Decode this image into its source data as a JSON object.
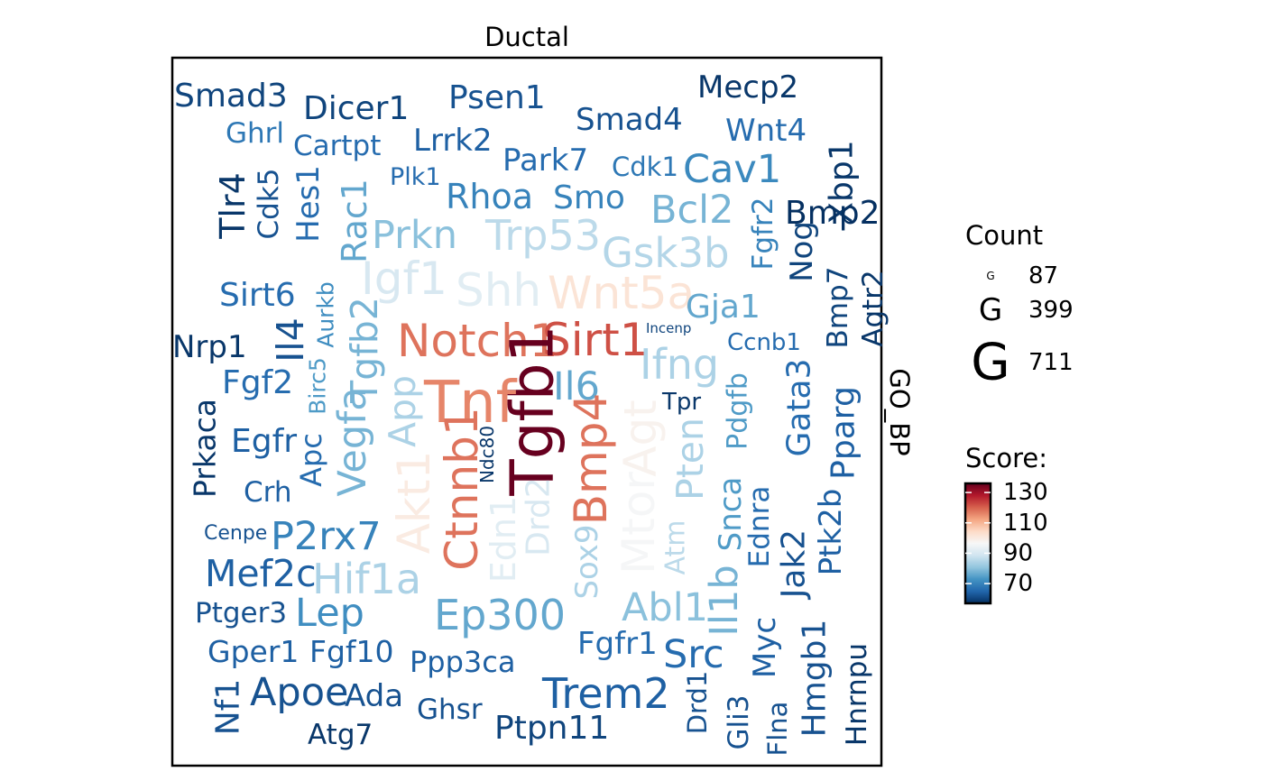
{
  "chart_data": {
    "type": "wordcloud",
    "title": "Ductal",
    "facet_strip": "GO_BP",
    "legend_count": {
      "title": "Count",
      "symbol": "G",
      "entries": [
        87,
        399,
        711
      ]
    },
    "legend_score": {
      "title": "Score:",
      "ticks": [
        130,
        110,
        90,
        70
      ],
      "range": [
        57,
        136
      ],
      "colors": [
        "#053061",
        "#2166ac",
        "#4393c3",
        "#92c5de",
        "#d1e5f0",
        "#f7f7f7",
        "#fddbc7",
        "#f4a582",
        "#d6604d",
        "#b2182b",
        "#67001f"
      ]
    },
    "words": [
      {
        "w": "Smad3",
        "s": 60
      },
      {
        "w": "Dicer1",
        "s": 60
      },
      {
        "w": "Psen1",
        "s": 62
      },
      {
        "w": "Mecp2",
        "s": 58
      },
      {
        "w": "Smad4",
        "s": 62
      },
      {
        "w": "Ghrl",
        "s": 68
      },
      {
        "w": "Cartpt",
        "s": 66
      },
      {
        "w": "Lrrk2",
        "s": 64
      },
      {
        "w": "Wnt4",
        "s": 66
      },
      {
        "w": "Park7",
        "s": 66
      },
      {
        "w": "Cdk1",
        "s": 68
      },
      {
        "w": "Cav1",
        "s": 71
      },
      {
        "w": "Xbp1",
        "s": 58
      },
      {
        "w": "Plk1",
        "s": 66
      },
      {
        "w": "Rhoa",
        "s": 70
      },
      {
        "w": "Smo",
        "s": 70
      },
      {
        "w": "Tlr4",
        "s": 58
      },
      {
        "w": "Cdk5",
        "s": 62
      },
      {
        "w": "Hes1",
        "s": 66
      },
      {
        "w": "Rac1",
        "s": 76
      },
      {
        "w": "Bcl2",
        "s": 78
      },
      {
        "w": "Fgfr2",
        "s": 70
      },
      {
        "w": "Bmp2",
        "s": 56
      },
      {
        "w": "Prkn",
        "s": 80
      },
      {
        "w": "Trp53",
        "s": 86
      },
      {
        "w": "Gsk3b",
        "s": 85
      },
      {
        "w": "Nog",
        "s": 60
      },
      {
        "w": "Igf1",
        "s": 90
      },
      {
        "w": "Shh",
        "s": 92
      },
      {
        "w": "Wnt5a",
        "s": 102
      },
      {
        "w": "Sirt6",
        "s": 66
      },
      {
        "w": "Gja1",
        "s": 76
      },
      {
        "w": "Bmp7",
        "s": 60
      },
      {
        "w": "Aurkb",
        "s": 72
      },
      {
        "w": "Tgfb2",
        "s": 78
      },
      {
        "w": "Agtr2",
        "s": 58
      },
      {
        "w": "Notch1",
        "s": 118
      },
      {
        "w": "Sirt1",
        "s": 122
      },
      {
        "w": "Incenp",
        "s": 60
      },
      {
        "w": "Il4",
        "s": 62
      },
      {
        "w": "Nrp1",
        "s": 58
      },
      {
        "w": "Birc5",
        "s": 74
      },
      {
        "w": "Tgfb1",
        "s": 136
      },
      {
        "w": "Ccnb1",
        "s": 66
      },
      {
        "w": "Ifng",
        "s": 84
      },
      {
        "w": "Fgf2",
        "s": 66
      },
      {
        "w": "Il6",
        "s": 76
      },
      {
        "w": "Gata3",
        "s": 66
      },
      {
        "w": "Tnf",
        "s": 116
      },
      {
        "w": "Pparg",
        "s": 64
      },
      {
        "w": "App",
        "s": 84
      },
      {
        "w": "Tpr",
        "s": 58
      },
      {
        "w": "Pdgfb",
        "s": 74
      },
      {
        "w": "Prkaca",
        "s": 58
      },
      {
        "w": "Vegfa",
        "s": 78
      },
      {
        "w": "Bmp4",
        "s": 118
      },
      {
        "w": "Agt",
        "s": 98
      },
      {
        "w": "Egfr",
        "s": 64
      },
      {
        "w": "Ndc80",
        "s": 58
      },
      {
        "w": "Pten",
        "s": 84
      },
      {
        "w": "Apc",
        "s": 66
      },
      {
        "w": "Mtor",
        "s": 96
      },
      {
        "w": "Ctnnb1",
        "s": 118
      },
      {
        "w": "Crh",
        "s": 64
      },
      {
        "w": "Akt1",
        "s": 100
      },
      {
        "w": "Snca",
        "s": 74
      },
      {
        "w": "Ednra",
        "s": 66
      },
      {
        "w": "Ptk2b",
        "s": 64
      },
      {
        "w": "Cenpe",
        "s": 62
      },
      {
        "w": "Drd2",
        "s": 90
      },
      {
        "w": "Edn1",
        "s": 92
      },
      {
        "w": "P2rx7",
        "s": 70
      },
      {
        "w": "Sox9",
        "s": 84
      },
      {
        "w": "Atm",
        "s": 86
      },
      {
        "w": "Hif1a",
        "s": 84
      },
      {
        "w": "Jak2",
        "s": 62
      },
      {
        "w": "Mef2c",
        "s": 64
      },
      {
        "w": "Il1b",
        "s": 78
      },
      {
        "w": "Abl1",
        "s": 80
      },
      {
        "w": "Ep300",
        "s": 76
      },
      {
        "w": "Lep",
        "s": 72
      },
      {
        "w": "Ptger3",
        "s": 62
      },
      {
        "w": "Myc",
        "s": 64
      },
      {
        "w": "Fgfr1",
        "s": 66
      },
      {
        "w": "Gper1",
        "s": 64
      },
      {
        "w": "Fgf10",
        "s": 64
      },
      {
        "w": "Ppp3ca",
        "s": 64
      },
      {
        "w": "Src",
        "s": 66
      },
      {
        "w": "Hmgb1",
        "s": 62
      },
      {
        "w": "Hnrnpu",
        "s": 58
      },
      {
        "w": "Nf1",
        "s": 62
      },
      {
        "w": "Apoe",
        "s": 62
      },
      {
        "w": "Ada",
        "s": 62
      },
      {
        "w": "Drd1",
        "s": 62
      },
      {
        "w": "Trem2",
        "s": 64
      },
      {
        "w": "Ghsr",
        "s": 62
      },
      {
        "w": "Gli3",
        "s": 62
      },
      {
        "w": "Flna",
        "s": 62
      },
      {
        "w": "Ptpn11",
        "s": 60
      },
      {
        "w": "Atg7",
        "s": 58
      }
    ]
  }
}
